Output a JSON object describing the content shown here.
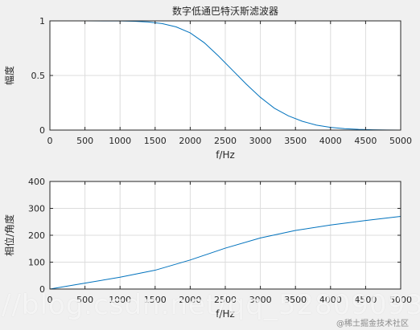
{
  "chart_data": [
    {
      "type": "line",
      "title": "数字低通巴特沃斯滤波器",
      "xlabel": "f/Hz",
      "ylabel": "幅度",
      "xlim": [
        0,
        5000
      ],
      "ylim": [
        0,
        1
      ],
      "xticks": [
        0,
        500,
        1000,
        1500,
        2000,
        2500,
        3000,
        3500,
        4000,
        4500,
        5000
      ],
      "yticks": [
        0,
        0.5,
        1
      ],
      "grid": true,
      "series": [
        {
          "color": "#0072bd",
          "x": [
            0,
            500,
            1000,
            1200,
            1400,
            1600,
            1800,
            2000,
            2200,
            2400,
            2600,
            2800,
            3000,
            3200,
            3400,
            3600,
            3800,
            4000,
            4200,
            4400,
            4600,
            4800,
            5000
          ],
          "y": [
            1.0,
            1.0,
            0.999,
            0.996,
            0.99,
            0.975,
            0.945,
            0.89,
            0.8,
            0.68,
            0.55,
            0.42,
            0.3,
            0.2,
            0.13,
            0.08,
            0.045,
            0.025,
            0.013,
            0.006,
            0.003,
            0.001,
            0.0
          ]
        }
      ]
    },
    {
      "type": "line",
      "title": "",
      "xlabel": "f/Hz",
      "ylabel": "相位/角度",
      "xlim": [
        0,
        5000
      ],
      "ylim": [
        0,
        400
      ],
      "xticks": [
        0,
        500,
        1000,
        1500,
        2000,
        2500,
        3000,
        3500,
        4000,
        4500,
        5000
      ],
      "yticks": [
        0,
        100,
        200,
        300,
        400
      ],
      "grid": true,
      "series": [
        {
          "color": "#0072bd",
          "x": [
            0,
            500,
            1000,
            1500,
            2000,
            2500,
            3000,
            3500,
            4000,
            4500,
            5000
          ],
          "y": [
            0,
            22,
            44,
            70,
            108,
            152,
            190,
            218,
            238,
            255,
            270
          ]
        }
      ]
    }
  ],
  "watermark": {
    "text": "//blog.csdn.net/qq_52809093",
    "brand": "@稀土掘金技术社区"
  }
}
